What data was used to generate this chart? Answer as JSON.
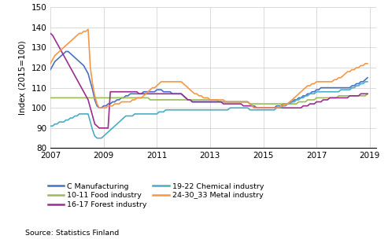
{
  "title": "",
  "ylabel": "Index (2015=100)",
  "xlabel": "",
  "ylim": [
    80,
    150
  ],
  "yticks": [
    80,
    90,
    100,
    110,
    120,
    130,
    140,
    150
  ],
  "xlim": [
    2007.0,
    2019.25
  ],
  "xticks": [
    2007,
    2009,
    2011,
    2013,
    2015,
    2017,
    2019
  ],
  "source_text": "Source: Statistics Finland",
  "colors": {
    "C_Manufacturing": "#4472C4",
    "Food_industry": "#9BBB59",
    "Forest_industry": "#9B2D8E",
    "Chemical_industry": "#4BACC6",
    "Metal_industry": "#F79646"
  },
  "series": {
    "C_Manufacturing": [
      119,
      121,
      123,
      124,
      125,
      126,
      127,
      128,
      128,
      127,
      126,
      125,
      124,
      123,
      122,
      121,
      119,
      117,
      113,
      109,
      104,
      101,
      100,
      100,
      101,
      101,
      102,
      102,
      103,
      103,
      104,
      104,
      105,
      105,
      106,
      106,
      107,
      107,
      107,
      107,
      107,
      107,
      108,
      108,
      108,
      108,
      108,
      108,
      109,
      109,
      109,
      108,
      108,
      108,
      108,
      107,
      107,
      107,
      107,
      107,
      106,
      105,
      104,
      104,
      103,
      103,
      103,
      103,
      103,
      103,
      103,
      103,
      103,
      103,
      103,
      103,
      103,
      103,
      103,
      103,
      103,
      103,
      103,
      103,
      103,
      103,
      103,
      103,
      103,
      103,
      102,
      101,
      101,
      100,
      100,
      100,
      100,
      100,
      100,
      100,
      100,
      100,
      101,
      101,
      101,
      102,
      102,
      102,
      103,
      103,
      104,
      104,
      105,
      105,
      106,
      106,
      107,
      107,
      108,
      108,
      109,
      109,
      110,
      110,
      110,
      110,
      110,
      110,
      110,
      110,
      110,
      110,
      110,
      110,
      110,
      110,
      111,
      111,
      112,
      112,
      113,
      113,
      114,
      115
    ],
    "Food_industry": [
      105,
      105,
      105,
      105,
      105,
      105,
      105,
      105,
      105,
      105,
      105,
      105,
      105,
      105,
      105,
      105,
      105,
      105,
      105,
      105,
      105,
      105,
      105,
      105,
      105,
      105,
      105,
      105,
      105,
      105,
      105,
      105,
      105,
      105,
      105,
      105,
      105,
      105,
      105,
      105,
      105,
      105,
      105,
      105,
      105,
      104,
      104,
      104,
      104,
      104,
      104,
      104,
      104,
      104,
      104,
      104,
      104,
      104,
      104,
      104,
      104,
      104,
      104,
      104,
      104,
      104,
      104,
      104,
      104,
      104,
      104,
      104,
      104,
      104,
      104,
      104,
      103,
      103,
      103,
      103,
      103,
      103,
      103,
      103,
      103,
      103,
      103,
      103,
      103,
      103,
      102,
      102,
      102,
      102,
      102,
      102,
      102,
      102,
      102,
      102,
      102,
      102,
      102,
      102,
      102,
      102,
      102,
      102,
      102,
      102,
      102,
      102,
      103,
      103,
      103,
      103,
      104,
      104,
      104,
      104,
      105,
      105,
      105,
      105,
      105,
      105,
      105,
      105,
      105,
      105,
      106,
      106,
      106,
      106,
      106,
      106,
      106,
      106,
      106,
      106,
      106,
      106,
      106,
      107
    ],
    "Forest_industry": [
      137,
      136,
      134,
      132,
      130,
      128,
      126,
      124,
      122,
      120,
      118,
      116,
      114,
      112,
      110,
      108,
      106,
      104,
      100,
      96,
      92,
      91,
      90,
      90,
      90,
      90,
      90,
      108,
      108,
      108,
      108,
      108,
      108,
      108,
      108,
      108,
      108,
      108,
      108,
      108,
      107,
      107,
      107,
      107,
      107,
      107,
      107,
      107,
      107,
      107,
      107,
      107,
      107,
      107,
      107,
      107,
      107,
      107,
      107,
      107,
      106,
      105,
      104,
      104,
      103,
      103,
      103,
      103,
      103,
      103,
      103,
      103,
      103,
      103,
      103,
      103,
      103,
      103,
      102,
      102,
      102,
      102,
      102,
      102,
      102,
      102,
      102,
      101,
      101,
      101,
      101,
      101,
      100,
      100,
      100,
      100,
      100,
      100,
      100,
      100,
      100,
      100,
      100,
      100,
      100,
      100,
      100,
      100,
      100,
      100,
      100,
      100,
      100,
      100,
      101,
      101,
      101,
      102,
      102,
      102,
      103,
      103,
      103,
      104,
      104,
      104,
      105,
      105,
      105,
      105,
      105,
      105,
      105,
      105,
      105,
      106,
      106,
      106,
      106,
      106,
      107,
      107,
      107,
      107
    ],
    "Chemical_industry": [
      91,
      91,
      92,
      92,
      93,
      93,
      93,
      94,
      94,
      95,
      95,
      96,
      96,
      97,
      97,
      97,
      97,
      97,
      93,
      89,
      86,
      85,
      85,
      85,
      86,
      87,
      88,
      89,
      90,
      91,
      92,
      93,
      94,
      95,
      96,
      96,
      96,
      96,
      97,
      97,
      97,
      97,
      97,
      97,
      97,
      97,
      97,
      97,
      97,
      98,
      98,
      98,
      99,
      99,
      99,
      99,
      99,
      99,
      99,
      99,
      99,
      99,
      99,
      99,
      99,
      99,
      99,
      99,
      99,
      99,
      99,
      99,
      99,
      99,
      99,
      99,
      99,
      99,
      99,
      99,
      99,
      100,
      100,
      100,
      100,
      100,
      100,
      100,
      100,
      100,
      99,
      99,
      99,
      99,
      99,
      99,
      99,
      99,
      99,
      99,
      99,
      99,
      100,
      100,
      100,
      101,
      101,
      102,
      102,
      103,
      103,
      104,
      104,
      105,
      105,
      106,
      106,
      107,
      107,
      107,
      108,
      108,
      108,
      108,
      108,
      108,
      108,
      108,
      108,
      108,
      108,
      109,
      109,
      109,
      109,
      109,
      110,
      110,
      111,
      111,
      112,
      112,
      113,
      113
    ],
    "Metal_industry": [
      122,
      124,
      126,
      127,
      128,
      129,
      130,
      131,
      132,
      133,
      134,
      135,
      136,
      137,
      137,
      138,
      138,
      139,
      120,
      112,
      106,
      102,
      100,
      100,
      100,
      100,
      101,
      101,
      101,
      102,
      102,
      102,
      103,
      103,
      103,
      103,
      103,
      104,
      104,
      105,
      105,
      105,
      106,
      107,
      108,
      109,
      110,
      110,
      111,
      112,
      113,
      113,
      113,
      113,
      113,
      113,
      113,
      113,
      113,
      113,
      112,
      111,
      110,
      109,
      108,
      107,
      107,
      106,
      106,
      105,
      105,
      105,
      104,
      104,
      104,
      104,
      104,
      104,
      104,
      103,
      103,
      103,
      103,
      103,
      103,
      103,
      103,
      103,
      103,
      103,
      102,
      101,
      100,
      100,
      100,
      100,
      100,
      100,
      100,
      100,
      100,
      100,
      100,
      100,
      101,
      101,
      102,
      102,
      103,
      104,
      105,
      106,
      107,
      108,
      109,
      110,
      111,
      111,
      112,
      112,
      113,
      113,
      113,
      113,
      113,
      113,
      113,
      113,
      114,
      114,
      115,
      115,
      116,
      117,
      118,
      118,
      119,
      119,
      120,
      120,
      121,
      121,
      122,
      122
    ]
  }
}
